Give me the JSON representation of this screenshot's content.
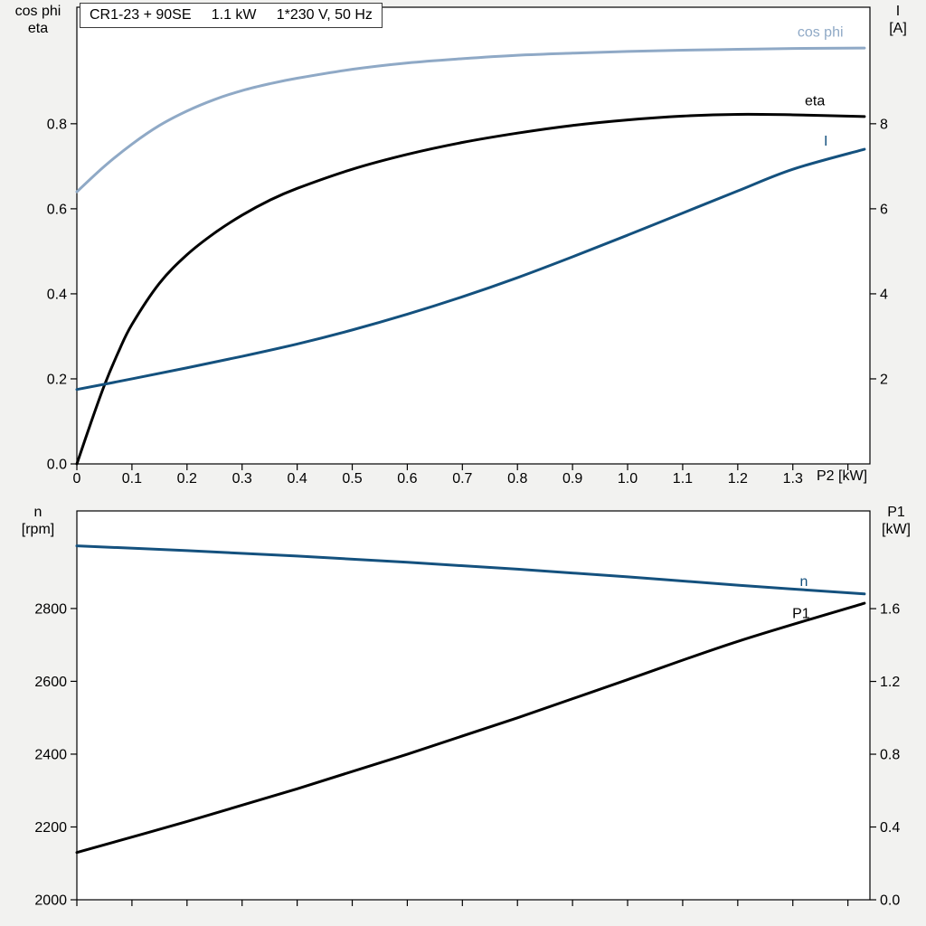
{
  "title_box": {
    "text": "CR1-23 + 90SE     1.1 kW     1*230 V, 50 Hz"
  },
  "axis_corner_labels": {
    "top_left_line1": "cos phi",
    "top_left_line2": "eta",
    "top_right_line1": "I",
    "top_right_line2": "[A]",
    "bottom_left_line1": "n",
    "bottom_left_line2": "[rpm]",
    "bottom_right_line1": "P1",
    "bottom_right_line2": "[kW]",
    "x_axis_title": "P2 [kW]"
  },
  "colors": {
    "page_bg": "#f2f2f0",
    "plot_bg": "#ffffff",
    "frame": "#000000",
    "cos_phi": "#8fa9c6",
    "current": "#14517e",
    "eta": "#000000",
    "speed": "#14517e",
    "power": "#000000"
  },
  "chart_data": [
    {
      "type": "line",
      "title": "CR1-23 + 90SE  1.1 kW  1*230 V, 50 Hz",
      "xlabel": "P2 [kW]",
      "grid": false,
      "legend_position": "inline-labels",
      "x_range": [
        0,
        1.44
      ],
      "x_ticks": [
        0,
        0.1,
        0.2,
        0.3,
        0.4,
        0.5,
        0.6,
        0.7,
        0.8,
        0.9,
        1.0,
        1.1,
        1.2,
        1.3,
        1.4
      ],
      "x_tick_labels": [
        "0",
        "0.1",
        "0.2",
        "0.3",
        "0.4",
        "0.5",
        "0.6",
        "0.7",
        "0.8",
        "0.9",
        "1.0",
        "1.1",
        "1.2",
        "1.3",
        ""
      ],
      "left_axis": {
        "label": "cos phi, eta",
        "range": [
          0,
          1.074
        ],
        "ticks": [
          0,
          0.2,
          0.4,
          0.6,
          0.8
        ],
        "tick_labels": [
          "0.0",
          "0.2",
          "0.4",
          "0.6",
          "0.8"
        ]
      },
      "right_axis": {
        "label": "I [A]",
        "range": [
          0,
          10.74
        ],
        "ticks": [
          2,
          4,
          6,
          8
        ],
        "tick_labels": [
          "2",
          "4",
          "6",
          "8"
        ]
      },
      "series": [
        {
          "name": "cos phi",
          "axis": "left",
          "color_key": "cos_phi",
          "label": "cos phi",
          "label_anchor": [
            1.35,
            1.017
          ],
          "x": [
            0,
            0.05,
            0.1,
            0.15,
            0.2,
            0.25,
            0.3,
            0.35,
            0.4,
            0.5,
            0.6,
            0.7,
            0.8,
            0.9,
            1.0,
            1.1,
            1.2,
            1.3,
            1.43
          ],
          "y": [
            0.64,
            0.7,
            0.752,
            0.796,
            0.83,
            0.857,
            0.878,
            0.894,
            0.907,
            0.928,
            0.943,
            0.953,
            0.961,
            0.966,
            0.97,
            0.973,
            0.975,
            0.977,
            0.978
          ]
        },
        {
          "name": "eta",
          "axis": "left",
          "color_key": "eta",
          "label": "eta",
          "label_anchor": [
            1.34,
            0.855
          ],
          "x": [
            0,
            0.025,
            0.05,
            0.075,
            0.1,
            0.15,
            0.2,
            0.25,
            0.3,
            0.35,
            0.4,
            0.5,
            0.6,
            0.7,
            0.8,
            0.9,
            1.0,
            1.1,
            1.2,
            1.3,
            1.43
          ],
          "y": [
            0,
            0.095,
            0.185,
            0.262,
            0.328,
            0.425,
            0.492,
            0.543,
            0.585,
            0.62,
            0.648,
            0.693,
            0.728,
            0.756,
            0.778,
            0.796,
            0.809,
            0.818,
            0.822,
            0.821,
            0.817
          ]
        },
        {
          "name": "I",
          "axis": "right",
          "color_key": "current",
          "label": "I",
          "label_anchor": [
            1.36,
            7.6
          ],
          "x": [
            0,
            0.1,
            0.2,
            0.3,
            0.4,
            0.5,
            0.6,
            0.7,
            0.8,
            0.9,
            1.0,
            1.1,
            1.2,
            1.3,
            1.43
          ],
          "y": [
            1.75,
            2.0,
            2.26,
            2.53,
            2.82,
            3.15,
            3.52,
            3.93,
            4.38,
            4.87,
            5.38,
            5.9,
            6.42,
            6.93,
            7.4
          ]
        }
      ]
    },
    {
      "type": "line",
      "title": "",
      "xlabel": "",
      "grid": false,
      "legend_position": "inline-labels",
      "x_range": [
        0,
        1.44
      ],
      "x_ticks": [
        0,
        0.1,
        0.2,
        0.3,
        0.4,
        0.5,
        0.6,
        0.7,
        0.8,
        0.9,
        1.0,
        1.1,
        1.2,
        1.3,
        1.4
      ],
      "x_tick_labels": [
        "",
        "",
        "",
        "",
        "",
        "",
        "",
        "",
        "",
        "",
        "",
        "",
        "",
        "",
        ""
      ],
      "left_axis": {
        "label": "n [rpm]",
        "range": [
          2000,
          3068
        ],
        "ticks": [
          2000,
          2200,
          2400,
          2600,
          2800
        ],
        "tick_labels": [
          "2000",
          "2200",
          "2400",
          "2600",
          "2800"
        ]
      },
      "right_axis": {
        "label": "P1 [kW]",
        "range": [
          0,
          2.137
        ],
        "ticks": [
          0,
          0.4,
          0.8,
          1.2,
          1.6
        ],
        "tick_labels": [
          "0.0",
          "0.4",
          "0.8",
          "1.2",
          "1.6"
        ]
      },
      "series": [
        {
          "name": "n",
          "axis": "left",
          "color_key": "speed",
          "label": "n",
          "label_anchor": [
            1.32,
            2875
          ],
          "x": [
            0,
            0.2,
            0.4,
            0.6,
            0.8,
            1.0,
            1.2,
            1.43
          ],
          "y": [
            2972,
            2959,
            2944,
            2927,
            2908,
            2887,
            2864,
            2840
          ]
        },
        {
          "name": "P1",
          "axis": "right",
          "color_key": "power",
          "label": "P1",
          "label_anchor": [
            1.315,
            1.575
          ],
          "x": [
            0,
            0.2,
            0.4,
            0.6,
            0.8,
            1.0,
            1.2,
            1.43
          ],
          "y": [
            0.26,
            0.43,
            0.61,
            0.8,
            1.0,
            1.21,
            1.42,
            1.63
          ]
        }
      ]
    }
  ]
}
